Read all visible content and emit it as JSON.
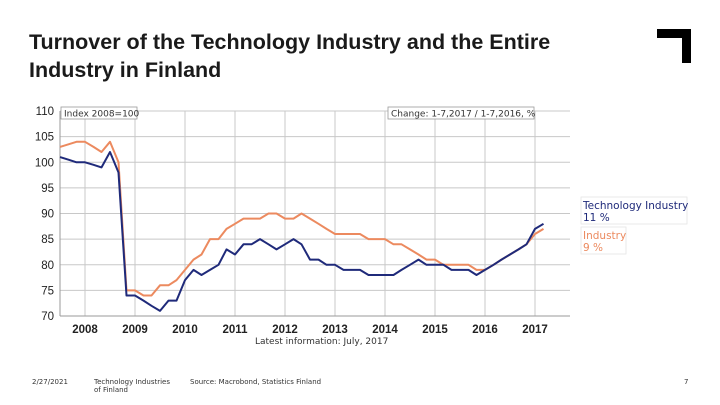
{
  "slide": {
    "title": "Turnover of the Technology Industry and the Entire Industry in Finland",
    "footer_date": "2/27/2021",
    "footer_left_line1": "Technology Industries",
    "footer_left_line2": "of Finland",
    "footer_source": "Source: Macrobond, Statistics Finland",
    "page_number": "7"
  },
  "colors": {
    "tech": "#1f2a7a",
    "industry": "#ec8a5f",
    "grid": "#c8c8c8",
    "bg": "#ffffff"
  },
  "chart_data": {
    "type": "line",
    "title": "Turnover of the Technology Industry and the Entire Industry in Finland",
    "index_label": "Index 2008=100",
    "change_label": "Change: 1-7,2017 / 1-7,2016, %",
    "latest_info": "Latest information: July, 2017",
    "xlim": [
      2007.5,
      2017.7
    ],
    "ylim": [
      70,
      110
    ],
    "xticks": [
      2008,
      2009,
      2010,
      2011,
      2012,
      2013,
      2014,
      2015,
      2016,
      2017
    ],
    "xtick_labels": [
      "2008",
      "2009",
      "2010",
      "2011",
      "2012",
      "2013",
      "2014",
      "2015",
      "2016",
      "2017"
    ],
    "yticks": [
      70,
      75,
      80,
      85,
      90,
      95,
      100,
      105,
      110
    ],
    "ytick_labels": [
      "70",
      "75",
      "80",
      "85",
      "90",
      "95",
      "100",
      "105",
      "110"
    ],
    "series": [
      {
        "name": "Technology Industry",
        "change": "11 %",
        "x": [
          2007.5,
          2007.67,
          2007.83,
          2008.0,
          2008.17,
          2008.33,
          2008.5,
          2008.67,
          2008.83,
          2009.0,
          2009.17,
          2009.33,
          2009.5,
          2009.67,
          2009.83,
          2010.0,
          2010.17,
          2010.33,
          2010.5,
          2010.67,
          2010.83,
          2011.0,
          2011.17,
          2011.33,
          2011.5,
          2011.67,
          2011.83,
          2012.0,
          2012.17,
          2012.33,
          2012.5,
          2012.67,
          2012.83,
          2013.0,
          2013.17,
          2013.33,
          2013.5,
          2013.67,
          2013.83,
          2014.0,
          2014.17,
          2014.33,
          2014.5,
          2014.67,
          2014.83,
          2015.0,
          2015.17,
          2015.33,
          2015.5,
          2015.67,
          2015.83,
          2016.0,
          2016.17,
          2016.33,
          2016.5,
          2016.67,
          2016.83,
          2017.0,
          2017.17
        ],
        "values": [
          101,
          100.5,
          100,
          100,
          99.5,
          99,
          102,
          98,
          74,
          74,
          73,
          72,
          71,
          73,
          73,
          77,
          79,
          78,
          79,
          80,
          83,
          82,
          84,
          84,
          85,
          84,
          83,
          84,
          85,
          84,
          81,
          81,
          80,
          80,
          79,
          79,
          79,
          78,
          78,
          78,
          78,
          79,
          80,
          81,
          80,
          80,
          80,
          79,
          79,
          79,
          78,
          79,
          80,
          81,
          82,
          83,
          84,
          87,
          88
        ]
      },
      {
        "name": "Industry",
        "change": "9 %",
        "x": [
          2007.5,
          2007.67,
          2007.83,
          2008.0,
          2008.17,
          2008.33,
          2008.5,
          2008.67,
          2008.83,
          2009.0,
          2009.17,
          2009.33,
          2009.5,
          2009.67,
          2009.83,
          2010.0,
          2010.17,
          2010.33,
          2010.5,
          2010.67,
          2010.83,
          2011.0,
          2011.17,
          2011.33,
          2011.5,
          2011.67,
          2011.83,
          2012.0,
          2012.17,
          2012.33,
          2012.5,
          2012.67,
          2012.83,
          2013.0,
          2013.17,
          2013.33,
          2013.5,
          2013.67,
          2013.83,
          2014.0,
          2014.17,
          2014.33,
          2014.5,
          2014.67,
          2014.83,
          2015.0,
          2015.17,
          2015.33,
          2015.5,
          2015.67,
          2015.83,
          2016.0,
          2016.17,
          2016.33,
          2016.5,
          2016.67,
          2016.83,
          2017.0,
          2017.17
        ],
        "values": [
          103,
          103.5,
          104,
          104,
          103,
          102,
          104,
          100,
          75,
          75,
          74,
          74,
          76,
          76,
          77,
          79,
          81,
          82,
          85,
          85,
          87,
          88,
          89,
          89,
          89,
          90,
          90,
          89,
          89,
          90,
          89,
          88,
          87,
          86,
          86,
          86,
          86,
          85,
          85,
          85,
          84,
          84,
          83,
          82,
          81,
          81,
          80,
          80,
          80,
          80,
          79,
          79,
          80,
          81,
          82,
          83,
          84,
          86,
          87
        ]
      }
    ]
  }
}
